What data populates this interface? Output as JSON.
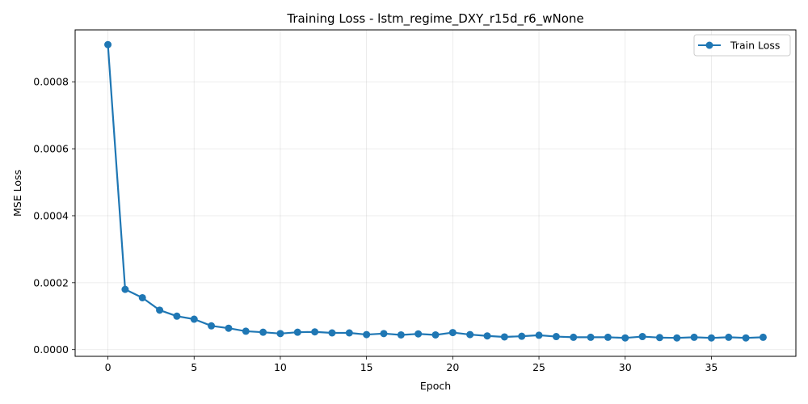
{
  "chart_data": {
    "type": "line",
    "title": "Training Loss - lstm_regime_DXY_r15d_r6_wNone",
    "xlabel": "Epoch",
    "ylabel": "MSE Loss",
    "xlim": [
      -1.9,
      39.9
    ],
    "ylim": [
      -2e-05,
      0.000955
    ],
    "xticks": [
      0,
      5,
      10,
      15,
      20,
      25,
      30,
      35
    ],
    "yticks": [
      0.0,
      0.0002,
      0.0004,
      0.0006,
      0.0008
    ],
    "ytick_labels": [
      "0.0000",
      "0.0002",
      "0.0004",
      "0.0006",
      "0.0008"
    ],
    "grid": true,
    "legend_position": "upper right",
    "series": [
      {
        "name": "Train Loss",
        "color": "#1f77b4",
        "x": [
          0,
          1,
          2,
          3,
          4,
          5,
          6,
          7,
          8,
          9,
          10,
          11,
          12,
          13,
          14,
          15,
          16,
          17,
          18,
          19,
          20,
          21,
          22,
          23,
          24,
          25,
          26,
          27,
          28,
          29,
          30,
          31,
          32,
          33,
          34,
          35,
          36,
          37,
          38
        ],
        "y": [
          0.000911,
          0.00018,
          0.000155,
          0.000118,
          0.0001,
          9.1e-05,
          7.1e-05,
          6.4e-05,
          5.5e-05,
          5.2e-05,
          4.8e-05,
          5.2e-05,
          5.3e-05,
          5e-05,
          5e-05,
          4.5e-05,
          4.8e-05,
          4.4e-05,
          4.7e-05,
          4.4e-05,
          5.1e-05,
          4.5e-05,
          4.1e-05,
          3.8e-05,
          4e-05,
          4.3e-05,
          3.9e-05,
          3.7e-05,
          3.7e-05,
          3.7e-05,
          3.5e-05,
          3.9e-05,
          3.6e-05,
          3.5e-05,
          3.7e-05,
          3.5e-05,
          3.7e-05,
          3.5e-05,
          3.7e-05
        ]
      }
    ]
  }
}
